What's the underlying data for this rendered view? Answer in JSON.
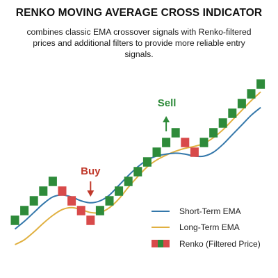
{
  "title": "RENKO MOVING AVERAGE CROSS INDICATOR",
  "subtitle": "combines classic EMA crossover signals with Renko-filtered prices and additional filters to provide more reliable entry signals.",
  "colors": {
    "up_brick": "#2e8b3a",
    "down_brick": "#d84a4a",
    "short_ema": "#3377aa",
    "long_ema": "#e0b040",
    "buy": "#c0392b",
    "sell": "#2e8b3a"
  },
  "chart_data": {
    "type": "line",
    "title": "RENKO MOVING AVERAGE CROSS INDICATOR",
    "subtitle": "combines classic EMA crossover signals with Renko-filtered prices and additional filters to provide more reliable entry signals.",
    "xlabel": "",
    "ylabel": "",
    "grid": false,
    "legend_position": "bottom-right",
    "renko_bricks": {
      "name": "Renko (Filtered Price)",
      "directions": [
        "up",
        "up",
        "up",
        "up",
        "up",
        "down",
        "down",
        "down",
        "down",
        "up",
        "up",
        "up",
        "up",
        "up",
        "up",
        "up",
        "up",
        "up",
        "down",
        "down",
        "up",
        "up",
        "up",
        "up",
        "up",
        "up",
        "up"
      ],
      "levels": [
        1,
        2,
        3,
        4,
        5,
        4,
        3,
        2,
        1,
        2,
        3,
        4,
        5,
        6,
        7,
        8,
        9,
        10,
        9,
        8,
        9,
        10,
        11,
        12,
        13,
        14,
        15
      ]
    },
    "series": [
      {
        "name": "Short-Term EMA",
        "color": "#3377aa",
        "x": [
          0,
          1,
          2,
          3,
          4,
          5,
          6,
          7,
          8,
          9,
          10,
          11,
          12,
          13,
          14,
          15,
          16,
          17,
          18,
          19,
          20,
          21,
          22,
          23,
          24,
          25,
          26
        ],
        "values": [
          0.1,
          0.9,
          1.8,
          2.7,
          3.4,
          3.6,
          3.4,
          3.0,
          2.8,
          3.0,
          3.6,
          4.6,
          5.6,
          6.5,
          7.2,
          7.6,
          7.8,
          7.9,
          7.8,
          7.6,
          7.6,
          8.0,
          8.8,
          9.8,
          10.8,
          11.8,
          12.6
        ]
      },
      {
        "name": "Long-Term EMA",
        "color": "#e0b040",
        "x": [
          0,
          1,
          2,
          3,
          4,
          5,
          6,
          7,
          8,
          9,
          10,
          11,
          12,
          13,
          14,
          15,
          16,
          17,
          18,
          19,
          20,
          21,
          22,
          23,
          24,
          25,
          26
        ],
        "values": [
          -1.5,
          -1.0,
          -0.2,
          0.7,
          1.5,
          2.1,
          2.3,
          2.1,
          1.8,
          1.8,
          2.3,
          3.2,
          4.4,
          5.5,
          6.5,
          7.2,
          7.7,
          8.1,
          8.4,
          8.6,
          8.9,
          9.5,
          10.3,
          11.3,
          12.3,
          13.3,
          14.2
        ]
      }
    ],
    "annotations": [
      {
        "label": "Buy",
        "x_index": 8
      },
      {
        "label": "Sell",
        "x_index": 16
      }
    ],
    "legend": [
      "Short-Term EMA",
      "Long-Term EMA",
      "Renko (Filtered Price)"
    ]
  }
}
